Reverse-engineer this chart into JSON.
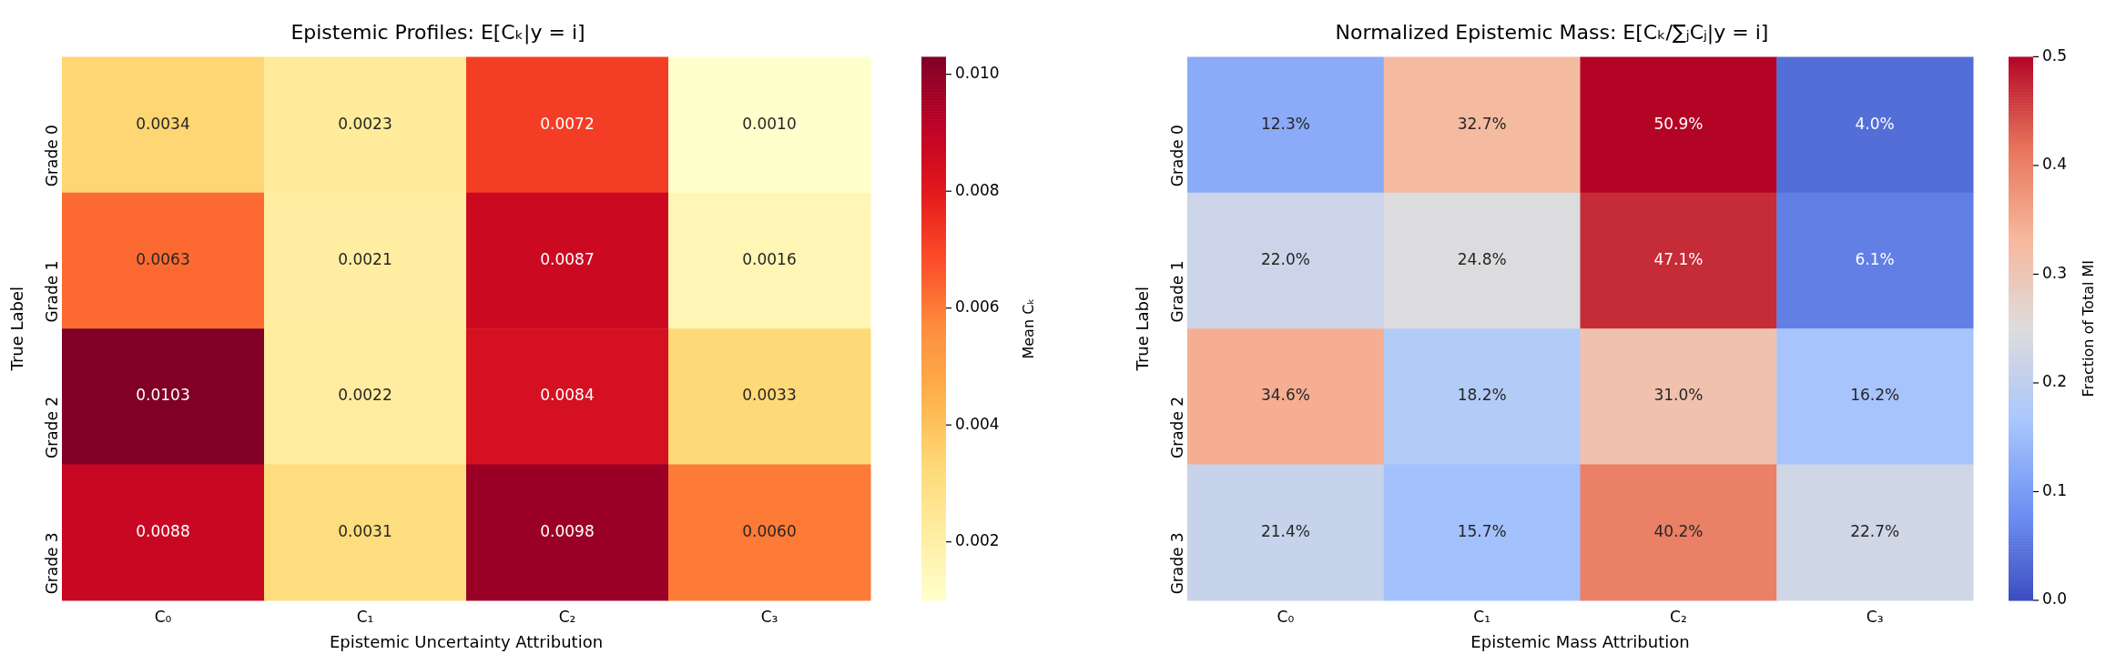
{
  "chart_data": [
    {
      "type": "heatmap",
      "title": "Epistemic Profiles: E[Cₖ|y = i]",
      "xlabel": "Epistemic Uncertainty Attribution",
      "ylabel": "True Label",
      "clabel": "Mean Cₖ",
      "categories": [
        "C₀",
        "C₁",
        "C₂",
        "C₃"
      ],
      "y_categories": [
        "Grade 0",
        "Grade 1",
        "Grade 2",
        "Grade 3"
      ],
      "cells": [
        [
          0.0034,
          0.0023,
          0.0072,
          0.001
        ],
        [
          0.0063,
          0.0021,
          0.0087,
          0.0016
        ],
        [
          0.0103,
          0.0022,
          0.0084,
          0.0033
        ],
        [
          0.0088,
          0.0031,
          0.0098,
          0.006
        ]
      ],
      "cell_labels": [
        [
          "0.0034",
          "0.0023",
          "0.0072",
          "0.0010"
        ],
        [
          "0.0063",
          "0.0021",
          "0.0087",
          "0.0016"
        ],
        [
          "0.0103",
          "0.0022",
          "0.0084",
          "0.0033"
        ],
        [
          "0.0088",
          "0.0031",
          "0.0098",
          "0.0060"
        ]
      ],
      "clim": [
        0.001,
        0.0103
      ],
      "cticks": [
        0.002,
        0.004,
        0.006,
        0.008,
        {
          "value": 0.01,
          "label": "0.010"
        }
      ],
      "colors": [
        "#ffffcc",
        "#ffeda0",
        "#fed976",
        "#feb24c",
        "#fd8d3c",
        "#fc4e2a",
        "#e31a1c",
        "#bd0026",
        "#800026"
      ]
    },
    {
      "type": "heatmap",
      "title": "Normalized Epistemic Mass: E[Cₖ/∑ⱼCⱼ|y = i]",
      "xlabel": "Epistemic Mass Attribution",
      "ylabel": "True Label",
      "clabel": "Fraction of Total MI",
      "categories": [
        "C₀",
        "C₁",
        "C₂",
        "C₃"
      ],
      "y_categories": [
        "Grade 0",
        "Grade 1",
        "Grade 2",
        "Grade 3"
      ],
      "cells": [
        [
          0.123,
          0.327,
          0.509,
          0.04
        ],
        [
          0.22,
          0.248,
          0.471,
          0.061
        ],
        [
          0.346,
          0.182,
          0.31,
          0.162
        ],
        [
          0.214,
          0.157,
          0.402,
          0.227
        ]
      ],
      "cell_labels": [
        [
          "12.3%",
          "32.7%",
          "50.9%",
          "4.0%"
        ],
        [
          "22.0%",
          "24.8%",
          "47.1%",
          "6.1%"
        ],
        [
          "34.6%",
          "18.2%",
          "31.0%",
          "16.2%"
        ],
        [
          "21.4%",
          "15.7%",
          "40.2%",
          "22.7%"
        ]
      ],
      "clim": [
        0,
        0.5
      ],
      "cticks": [
        {
          "value": 0,
          "label": "0.0"
        },
        0.1,
        0.2,
        0.3,
        0.4,
        0.5
      ],
      "colors": [
        "#3b4cc0",
        "#6f92f3",
        "#aac7fd",
        "#dddcdc",
        "#f7b89c",
        "#e7745b",
        "#b40426"
      ]
    }
  ]
}
